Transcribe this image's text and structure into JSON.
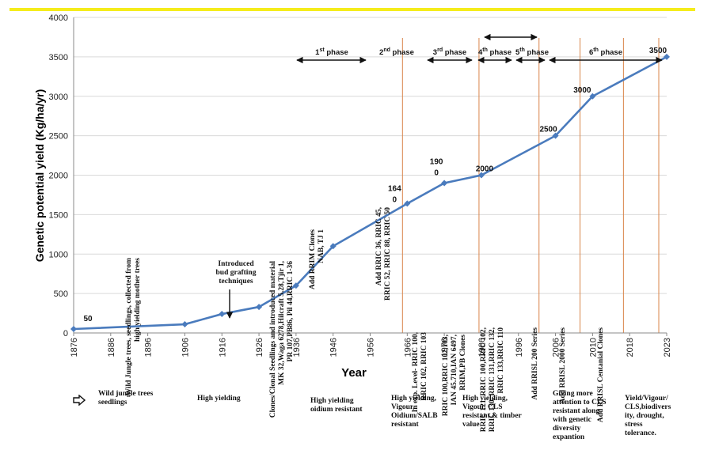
{
  "chart_data": {
    "type": "line",
    "ylabel": "Genetic potential yield (Kg/ha/yr)",
    "xlabel": "Year",
    "ylim": [
      0,
      4000
    ],
    "yticks": [
      0,
      500,
      1000,
      1500,
      2000,
      2500,
      3000,
      3500,
      4000
    ],
    "xticks": [
      "1876",
      "1886",
      "1896",
      "1906",
      "1916",
      "1926",
      "1936",
      "1946",
      "1956",
      "1966",
      "1976",
      "1986",
      "1996",
      "2006",
      "2010",
      "2018",
      "2023"
    ],
    "series": [
      {
        "values": [
          {
            "x": "1876",
            "y": 50
          },
          {
            "x": "1906",
            "y": 110
          },
          {
            "x": "1916",
            "y": 240
          },
          {
            "x": "1926",
            "y": 330
          },
          {
            "x": "1936",
            "y": 600
          },
          {
            "x": "1946",
            "y": 1100
          },
          {
            "x": "1966",
            "y": 1640
          },
          {
            "x": "1976",
            "y": 1900
          },
          {
            "x": "1986",
            "y": 2000
          },
          {
            "x": "2006",
            "y": 2500
          },
          {
            "x": "2010",
            "y": 3000
          },
          {
            "x": "2023",
            "y": 3500
          }
        ],
        "color": "#4a7bbd"
      }
    ],
    "data_labels": [
      {
        "x": "1876",
        "text": "50"
      },
      {
        "x": "1966",
        "text": "164\n0"
      },
      {
        "x": "1976",
        "text": "190\n0"
      },
      {
        "x": "1986",
        "text": "2000"
      },
      {
        "x": "2006",
        "text": "2500"
      },
      {
        "x": "2010",
        "text": "3000"
      },
      {
        "x": "2023",
        "text": "3500"
      }
    ],
    "phases": [
      {
        "label": "1",
        "sup": "st",
        "rest": " phase"
      },
      {
        "label": "2",
        "sup": "nd",
        "rest": " phase"
      },
      {
        "label": "3",
        "sup": "rd",
        "rest": " phase"
      },
      {
        "label": "4",
        "sup": "th",
        "rest": " phase"
      },
      {
        "label": "5",
        "sup": "th",
        "rest": " phase"
      },
      {
        "label": "6",
        "sup": "th",
        "rest": " phase"
      }
    ],
    "annotations": {
      "wild": [
        "Wild Jungle trees, seedlings, collected from",
        "high yielding   mother trees"
      ],
      "budgraft": [
        "Introduced",
        "bud grafting",
        "techniques"
      ],
      "clones": [
        "Clones/Clonal Seedlings and introduced material",
        "MK 32,Waga 6278,Hilcraft 5.28,Tjir 1,",
        "PR 107,PB86, Pil 44,RRIC 1-36"
      ],
      "rrim": [
        "Add RRIM Clones",
        "NAB, TJ 1"
      ],
      "rric36": [
        "Add RRIC 36, RRIC 45,",
        "RRIC 52, RRIC 88, RRIC 50"
      ],
      "inexp": [
        "In exp. Level- RRIC 100,",
        "RRIC 102, RRIC 103"
      ],
      "rric100": [
        "RRIC 100,RRIC 102,103,",
        "IAN 45.710,IAN 6497,",
        "RRIM,PB Clones"
      ],
      "rric121": [
        "RRIC 121, RRIC 100,RRIC 102,",
        "RRIC 130, RRIC 131,RRIC 132,",
        "RRIC 133,RRIC 110"
      ],
      "rrisl200": [
        "Add RRISL 200 Series"
      ],
      "rrisl2000": [
        "Add RRISL 2000 Series"
      ],
      "centanial": [
        "Add RRISL  Centanial Clones"
      ]
    }
  },
  "bottom_notes": {
    "n1": [
      "Wild jungle trees",
      "seedlings"
    ],
    "n2": [
      "High yielding"
    ],
    "n3": [
      "High yielding",
      "oidium resistant"
    ],
    "n4": [
      "High yielding,",
      "Vigour,",
      "Oidium/SALB",
      "resistant"
    ],
    "n5": [
      "High yielding,",
      "Vigour, CLS",
      "resistant  & timber",
      "value"
    ],
    "n6": [
      "Giving more",
      "attention to CLS",
      "resistant along",
      "with genetic",
      "diversity",
      "expantion"
    ],
    "n7": [
      "Yield/Vigour/",
      "CLS,biodivers",
      "ity, drought,",
      "stress",
      "tolerance."
    ]
  },
  "colors": {
    "line": "#4a7bbd",
    "vline": "#d9844a",
    "highlight": "#f5ec1c"
  },
  "icons": {
    "legend": "right-arrow-outline-icon"
  }
}
